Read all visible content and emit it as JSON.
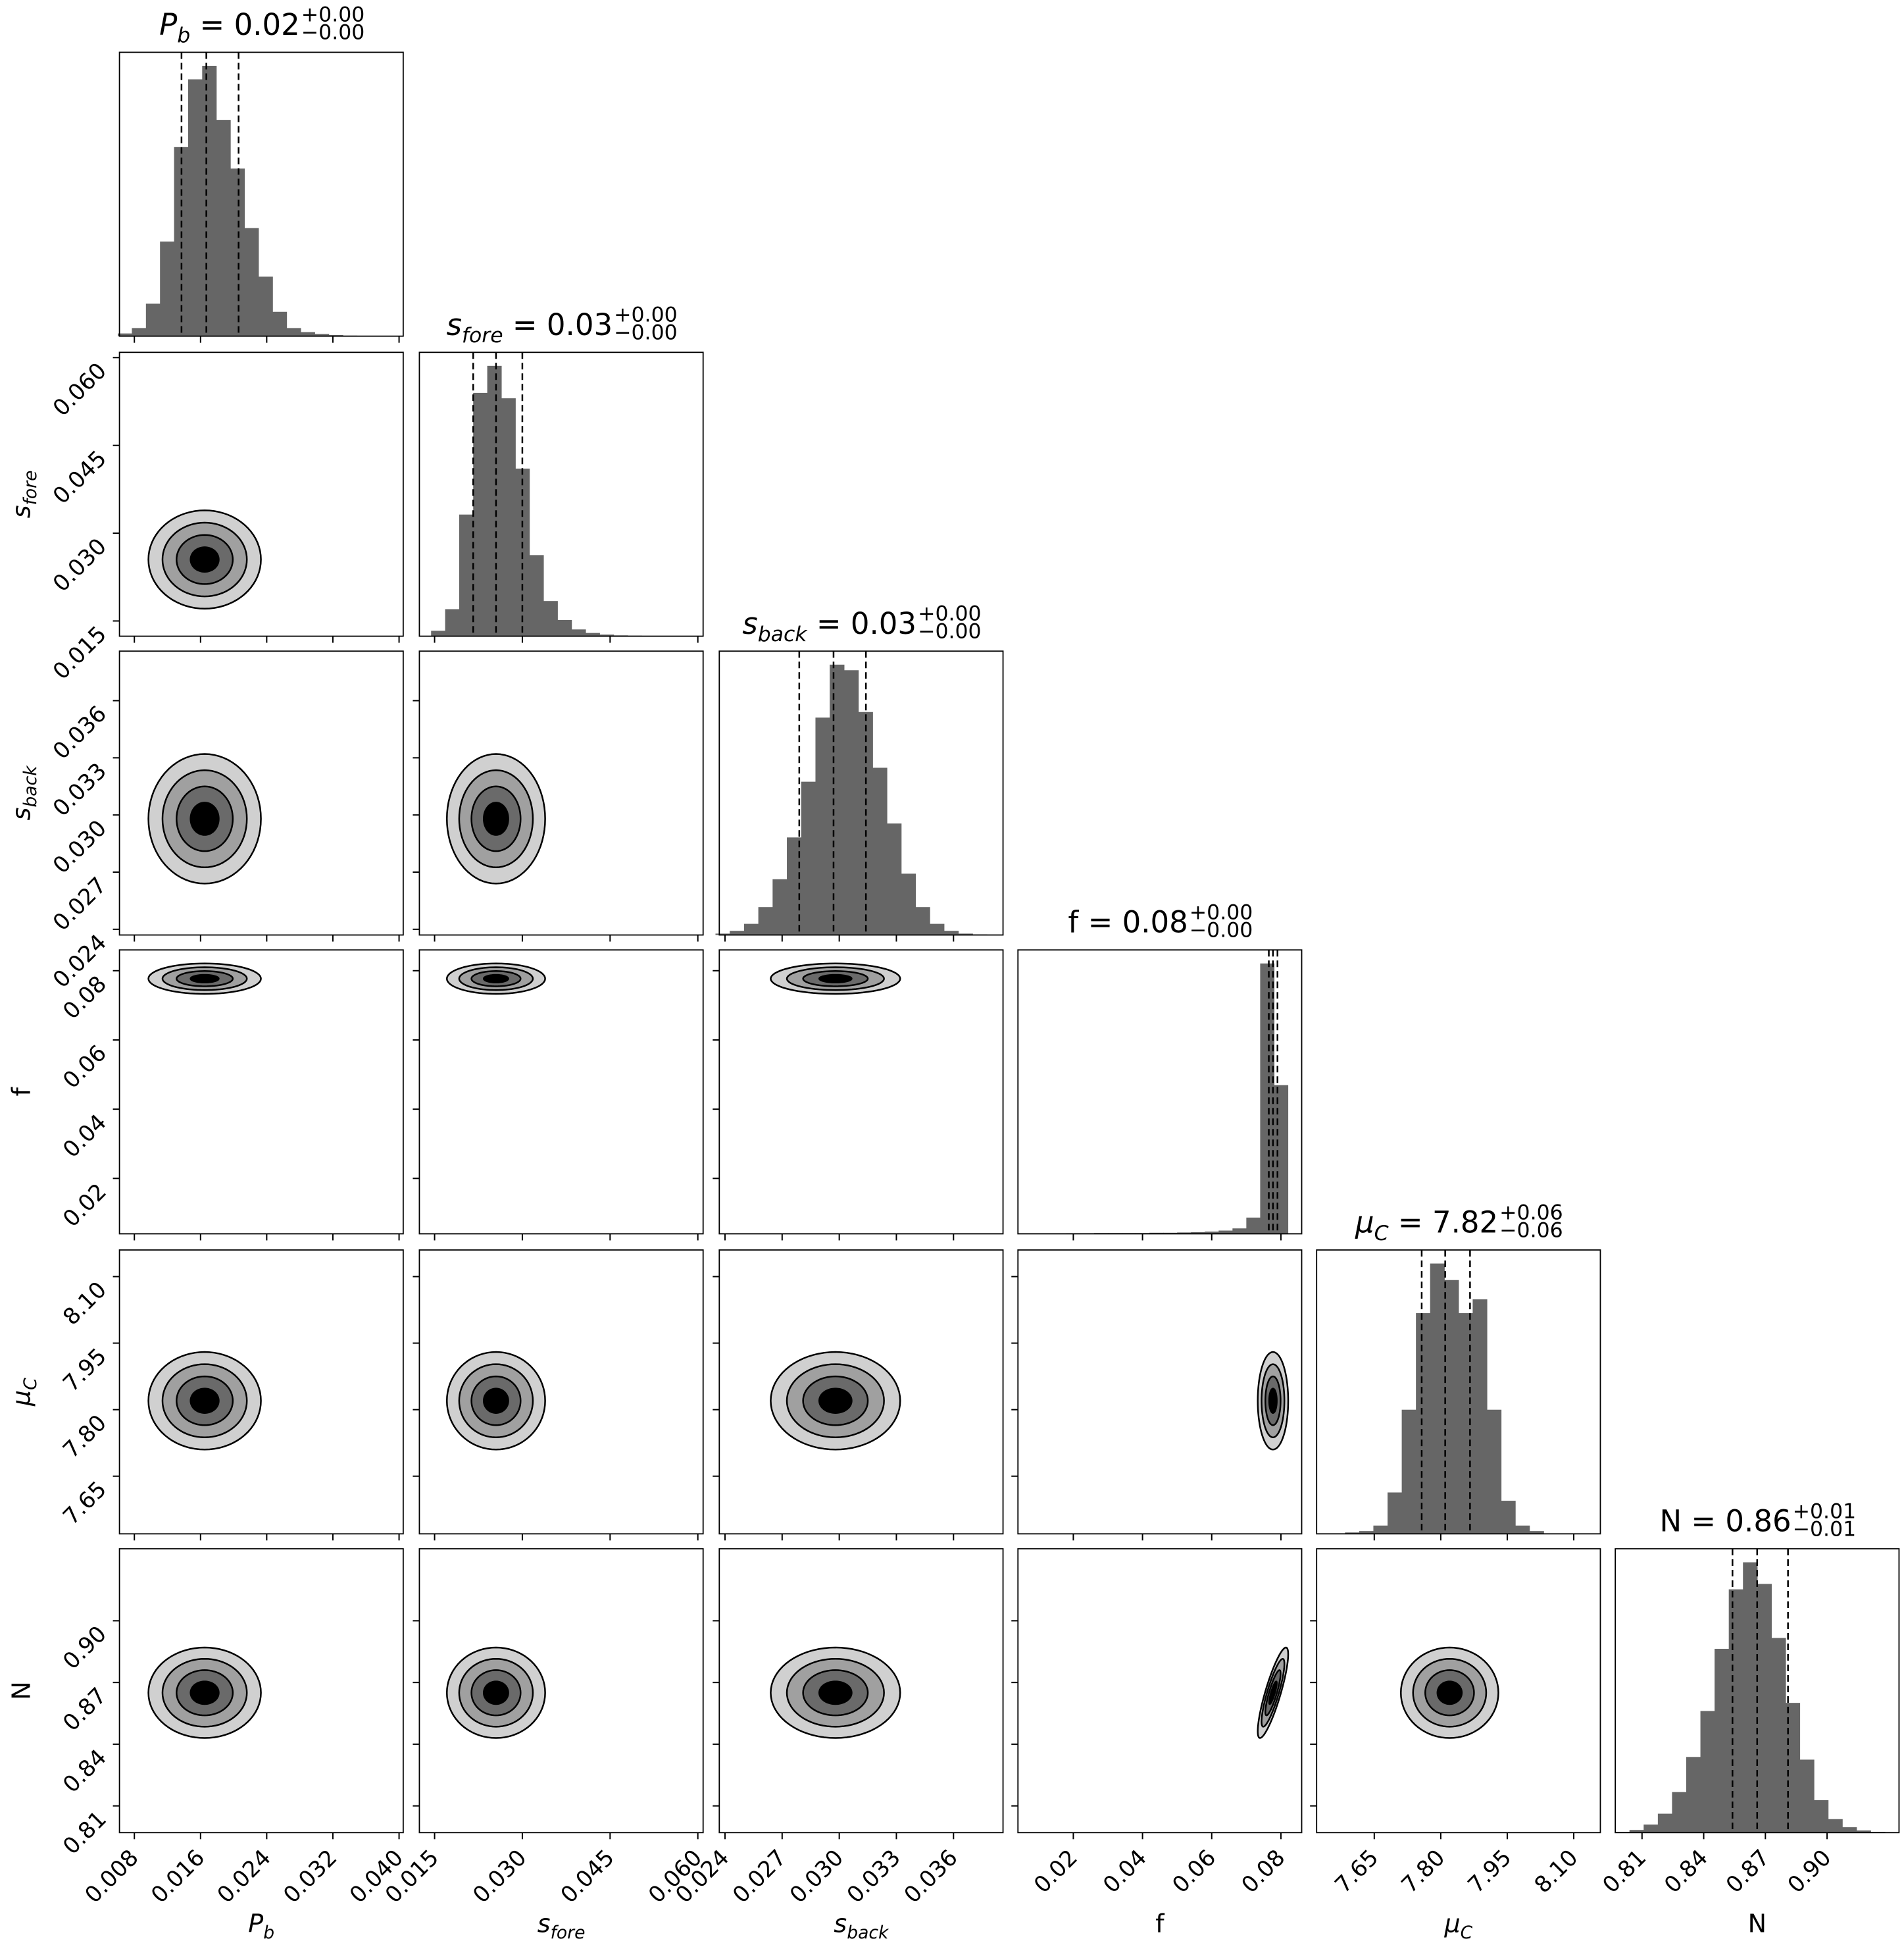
{
  "chart_data": {
    "type": "corner",
    "parameters": [
      {
        "symbol": "P",
        "subscript": "b",
        "italic": true,
        "xlim": [
          0.0062,
          0.0405
        ],
        "ticks": [
          0.008,
          0.016,
          0.024,
          0.032,
          {
            "value": 0.04,
            "label": "0.040"
          }
        ],
        "quantiles": [
          0.0137,
          0.0167,
          0.0206
        ],
        "mode": 0.0165,
        "sd": 0.0034,
        "title": {
          "value": " = 0.02",
          "upper": "+0.00",
          "lower": "−0.00"
        },
        "bins": [
          0.006,
          0.0077,
          0.0094,
          0.0111,
          0.0128,
          0.0145,
          0.0162,
          0.0179,
          0.0196,
          0.0213,
          0.023,
          0.0247,
          0.0264,
          0.0281,
          0.0298,
          0.0315,
          0.0332,
          0.0349,
          0.0366,
          0.0383,
          0.04
        ],
        "counts": [
          0.01,
          0.03,
          0.12,
          0.35,
          0.7,
          0.95,
          1.0,
          0.8,
          0.62,
          0.4,
          0.22,
          0.09,
          0.03,
          0.015,
          0.008,
          0.004,
          0.002,
          0.001,
          0,
          0
        ]
      },
      {
        "symbol": "s",
        "subscript": "fore",
        "italic": true,
        "xlim": [
          0.0124,
          0.0609
        ],
        "ticks": [
          0.015,
          {
            "value": 0.03,
            "label": "0.030"
          },
          0.045,
          {
            "value": 0.06,
            "label": "0.060"
          }
        ],
        "quantiles": [
          0.0216,
          0.0255,
          0.03
        ],
        "mode": 0.0255,
        "sd": 0.0042,
        "title": {
          "value": " = 0.03",
          "upper": "+0.00",
          "lower": "−0.00"
        },
        "bins": [
          0.012,
          0.0144,
          0.0168,
          0.0192,
          0.0216,
          0.024,
          0.0264,
          0.0288,
          0.0312,
          0.0336,
          0.036,
          0.0384,
          0.0408,
          0.0432,
          0.0456,
          0.048,
          0.0504,
          0.0528,
          0.0552,
          0.0576,
          0.06
        ],
        "counts": [
          0,
          0.02,
          0.1,
          0.45,
          0.9,
          1.0,
          0.88,
          0.62,
          0.3,
          0.13,
          0.06,
          0.025,
          0.012,
          0.006,
          0.003,
          0.002,
          0.001,
          0.001,
          0,
          0
        ]
      },
      {
        "symbol": "s",
        "subscript": "back",
        "italic": true,
        "xlim": [
          0.0237,
          0.0386
        ],
        "ticks": [
          0.024,
          0.027,
          {
            "value": 0.03,
            "label": "0.030"
          },
          0.033,
          0.036
        ],
        "quantiles": [
          0.0279,
          0.0297,
          0.0314
        ],
        "mode": 0.0298,
        "sd": 0.0017,
        "title": {
          "value": " = 0.03",
          "upper": "+0.00",
          "lower": "−0.00"
        },
        "bins": [
          0.0235,
          0.02425,
          0.025,
          0.02575,
          0.0265,
          0.02725,
          0.028,
          0.02875,
          0.0295,
          0.03025,
          0.031,
          0.03175,
          0.0325,
          0.03325,
          0.034,
          0.03475,
          0.0355,
          0.03625,
          0.037,
          0.03775,
          0.0385
        ],
        "counts": [
          0.005,
          0.015,
          0.04,
          0.1,
          0.2,
          0.35,
          0.55,
          0.78,
          0.97,
          0.95,
          0.8,
          0.6,
          0.4,
          0.22,
          0.1,
          0.04,
          0.015,
          0.005,
          0.002,
          0
        ]
      },
      {
        "symbol": "f",
        "subscript": "",
        "italic": false,
        "xlim": [
          0.004,
          0.086
        ],
        "ticks": [
          0.02,
          0.04,
          0.06,
          0.08
        ],
        "quantiles": [
          0.0765,
          0.0777,
          0.079
        ],
        "mode": 0.0777,
        "sd": 0.0022,
        "title": {
          "value": " = 0.08",
          "upper": "+0.00",
          "lower": "−0.00"
        },
        "bins": [
          0.006,
          0.01,
          0.014,
          0.018,
          0.022,
          0.026,
          0.03,
          0.034,
          0.038,
          0.042,
          0.046,
          0.05,
          0.054,
          0.058,
          0.062,
          0.066,
          0.07,
          0.074,
          0.078,
          0.082,
          0.086
        ],
        "counts": [
          0,
          0,
          0,
          0.002,
          0.002,
          0.003,
          0.003,
          0.003,
          0.003,
          0.004,
          0.004,
          0.005,
          0.006,
          0.008,
          0.012,
          0.02,
          0.06,
          1.0,
          0.55,
          0
        ]
      },
      {
        "symbol": "μ",
        "subscript": "C",
        "italic": true,
        "xlim": [
          7.52,
          8.16
        ],
        "ticks": [
          7.65,
          {
            "value": 7.8,
            "label": "7.80"
          },
          7.95,
          {
            "value": 8.1,
            "label": "8.10"
          }
        ],
        "quantiles": [
          7.757,
          7.81,
          7.866
        ],
        "mode": 7.82,
        "sd": 0.055,
        "title": {
          "value": " = 7.82",
          "upper": "+0.06",
          "lower": "−0.06"
        },
        "bins": [
          7.52,
          7.552,
          7.584,
          7.616,
          7.648,
          7.68,
          7.712,
          7.744,
          7.776,
          7.808,
          7.84,
          7.872,
          7.904,
          7.936,
          7.968,
          8.0,
          8.032,
          8.064,
          8.096,
          8.128,
          8.16
        ],
        "counts": [
          0,
          0,
          0.005,
          0.01,
          0.03,
          0.15,
          0.45,
          0.8,
          0.98,
          0.92,
          0.8,
          0.85,
          0.45,
          0.12,
          0.03,
          0.01,
          0,
          0,
          0,
          0
        ]
      },
      {
        "symbol": "N",
        "subscript": "",
        "italic": false,
        "xlim": [
          0.797,
          0.935
        ],
        "ticks": [
          0.81,
          0.84,
          0.87,
          {
            "value": 0.9,
            "label": "0.90"
          }
        ],
        "quantiles": [
          0.854,
          0.866,
          0.881
        ],
        "mode": 0.865,
        "sd": 0.011,
        "title": {
          "value": " = 0.86",
          "upper": "+0.01",
          "lower": "−0.01"
        },
        "bins": [
          0.797,
          0.8039,
          0.8108,
          0.8177,
          0.8246,
          0.8315,
          0.8384,
          0.8453,
          0.8522,
          0.8591,
          0.866,
          0.8729,
          0.8798,
          0.8867,
          0.8936,
          0.9005,
          0.9074,
          0.9143,
          0.9212,
          0.9281,
          0.935
        ],
        "counts": [
          0.003,
          0.01,
          0.03,
          0.07,
          0.15,
          0.28,
          0.45,
          0.68,
          0.9,
          1.0,
          0.92,
          0.72,
          0.48,
          0.27,
          0.12,
          0.05,
          0.02,
          0.008,
          0.003,
          0.001
        ]
      }
    ],
    "correlation": [
      [
        1
      ],
      [
        0,
        1
      ],
      [
        0,
        0,
        1
      ],
      [
        0,
        0,
        0,
        1
      ],
      [
        0,
        0,
        0,
        0,
        1
      ],
      [
        0,
        0,
        0,
        0.85,
        0,
        1
      ]
    ]
  }
}
